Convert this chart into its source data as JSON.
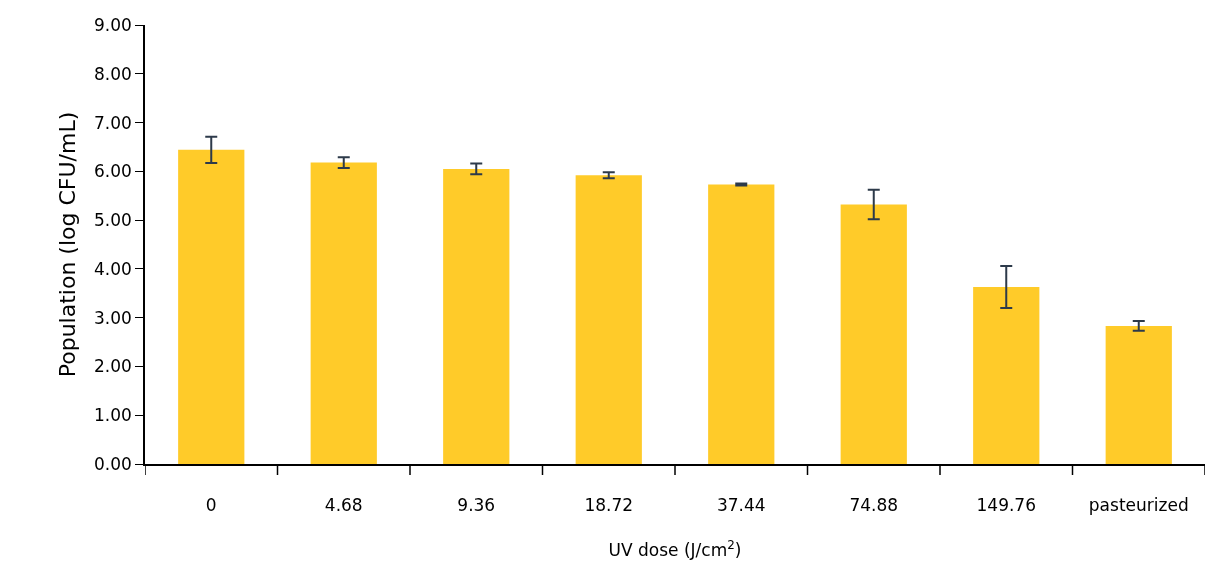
{
  "chart_data": {
    "type": "bar",
    "xlabel": "UV dose (J/cm$^{2}$)",
    "ylabel": "Population (log CFU/mL)",
    "categories": [
      "0",
      "4.68",
      "9.36",
      "18.72",
      "37.44",
      "74.88",
      "149.76",
      "pasteurized"
    ],
    "values": [
      6.44,
      6.18,
      6.05,
      5.92,
      5.73,
      5.32,
      3.63,
      2.83
    ],
    "errors": [
      0.27,
      0.11,
      0.11,
      0.06,
      0.02,
      0.3,
      0.43,
      0.1
    ],
    "color": "#ffcb29",
    "ylim": [
      0,
      9
    ],
    "yticks": [
      {
        "value": 0,
        "label": "0.00"
      },
      {
        "value": 1,
        "label": "1.00"
      },
      {
        "value": 2,
        "label": "2.00"
      },
      {
        "value": 3,
        "label": "3.00"
      },
      {
        "value": 4,
        "label": "4.00"
      },
      {
        "value": 5,
        "label": "5.00"
      },
      {
        "value": 6,
        "label": "6.00"
      },
      {
        "value": 7,
        "label": "7.00"
      },
      {
        "value": 8,
        "label": "8.00"
      },
      {
        "value": 9,
        "label": "9.00"
      }
    ],
    "grid": false
  }
}
